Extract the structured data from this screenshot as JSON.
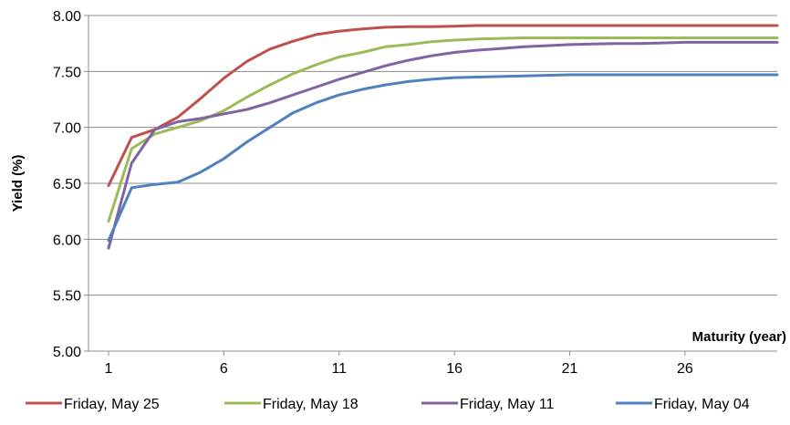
{
  "chart_data": {
    "type": "line",
    "ylabel": "Yield (%)",
    "xlabel": "Maturity (year)",
    "xlim": [
      1,
      30
    ],
    "ylim": [
      5.0,
      8.0
    ],
    "x_ticks": [
      1,
      6,
      11,
      16,
      21,
      26
    ],
    "y_ticks": [
      "5.00",
      "5.50",
      "6.00",
      "6.50",
      "7.00",
      "7.50",
      "8.00"
    ],
    "grid": "horizontal",
    "legend_position": "bottom",
    "series": [
      {
        "name": "Friday, May 25",
        "color": "#c0504d",
        "points": [
          [
            1,
            6.48
          ],
          [
            2,
            6.91
          ],
          [
            3,
            6.98
          ],
          [
            4,
            7.09
          ],
          [
            5,
            7.26
          ],
          [
            6,
            7.44
          ],
          [
            7,
            7.59
          ],
          [
            8,
            7.7
          ],
          [
            9,
            7.77
          ],
          [
            10,
            7.83
          ],
          [
            11,
            7.86
          ],
          [
            12,
            7.88
          ],
          [
            13,
            7.895
          ],
          [
            14,
            7.9
          ],
          [
            15,
            7.9
          ],
          [
            16,
            7.905
          ],
          [
            17,
            7.91
          ],
          [
            18,
            7.91
          ],
          [
            19,
            7.91
          ],
          [
            20,
            7.91
          ],
          [
            21,
            7.91
          ],
          [
            22,
            7.91
          ],
          [
            23,
            7.91
          ],
          [
            24,
            7.91
          ],
          [
            25,
            7.91
          ],
          [
            26,
            7.91
          ],
          [
            27,
            7.91
          ],
          [
            28,
            7.91
          ],
          [
            29,
            7.91
          ],
          [
            30,
            7.91
          ]
        ]
      },
      {
        "name": "Friday, May 18",
        "color": "#9bbb59",
        "points": [
          [
            1,
            6.16
          ],
          [
            2,
            6.81
          ],
          [
            3,
            6.94
          ],
          [
            4,
            7.0
          ],
          [
            5,
            7.06
          ],
          [
            6,
            7.15
          ],
          [
            7,
            7.27
          ],
          [
            8,
            7.38
          ],
          [
            9,
            7.48
          ],
          [
            10,
            7.56
          ],
          [
            11,
            7.63
          ],
          [
            12,
            7.67
          ],
          [
            13,
            7.72
          ],
          [
            14,
            7.74
          ],
          [
            15,
            7.765
          ],
          [
            16,
            7.78
          ],
          [
            17,
            7.79
          ],
          [
            18,
            7.795
          ],
          [
            19,
            7.8
          ],
          [
            20,
            7.8
          ],
          [
            21,
            7.8
          ],
          [
            22,
            7.8
          ],
          [
            23,
            7.8
          ],
          [
            24,
            7.8
          ],
          [
            25,
            7.8
          ],
          [
            26,
            7.8
          ],
          [
            27,
            7.8
          ],
          [
            28,
            7.8
          ],
          [
            29,
            7.8
          ],
          [
            30,
            7.8
          ]
        ]
      },
      {
        "name": "Friday, May 11",
        "color": "#8064a2",
        "points": [
          [
            1,
            5.92
          ],
          [
            2,
            6.68
          ],
          [
            3,
            6.98
          ],
          [
            4,
            7.05
          ],
          [
            5,
            7.08
          ],
          [
            6,
            7.12
          ],
          [
            7,
            7.16
          ],
          [
            8,
            7.22
          ],
          [
            9,
            7.29
          ],
          [
            10,
            7.36
          ],
          [
            11,
            7.43
          ],
          [
            12,
            7.49
          ],
          [
            13,
            7.55
          ],
          [
            14,
            7.6
          ],
          [
            15,
            7.64
          ],
          [
            16,
            7.67
          ],
          [
            17,
            7.69
          ],
          [
            18,
            7.705
          ],
          [
            19,
            7.72
          ],
          [
            20,
            7.73
          ],
          [
            21,
            7.74
          ],
          [
            22,
            7.745
          ],
          [
            23,
            7.75
          ],
          [
            24,
            7.75
          ],
          [
            25,
            7.755
          ],
          [
            26,
            7.76
          ],
          [
            27,
            7.76
          ],
          [
            28,
            7.76
          ],
          [
            29,
            7.76
          ],
          [
            30,
            7.76
          ]
        ]
      },
      {
        "name": "Friday, May 04",
        "color": "#4f81bd",
        "points": [
          [
            1,
            5.99
          ],
          [
            2,
            6.46
          ],
          [
            3,
            6.49
          ],
          [
            4,
            6.51
          ],
          [
            5,
            6.6
          ],
          [
            6,
            6.72
          ],
          [
            7,
            6.87
          ],
          [
            8,
            7.0
          ],
          [
            9,
            7.13
          ],
          [
            10,
            7.22
          ],
          [
            11,
            7.29
          ],
          [
            12,
            7.34
          ],
          [
            13,
            7.38
          ],
          [
            14,
            7.41
          ],
          [
            15,
            7.43
          ],
          [
            16,
            7.445
          ],
          [
            17,
            7.45
          ],
          [
            18,
            7.455
          ],
          [
            19,
            7.46
          ],
          [
            20,
            7.465
          ],
          [
            21,
            7.47
          ],
          [
            22,
            7.47
          ],
          [
            23,
            7.47
          ],
          [
            24,
            7.47
          ],
          [
            25,
            7.47
          ],
          [
            26,
            7.47
          ],
          [
            27,
            7.47
          ],
          [
            28,
            7.47
          ],
          [
            29,
            7.47
          ],
          [
            30,
            7.47
          ]
        ]
      }
    ]
  }
}
